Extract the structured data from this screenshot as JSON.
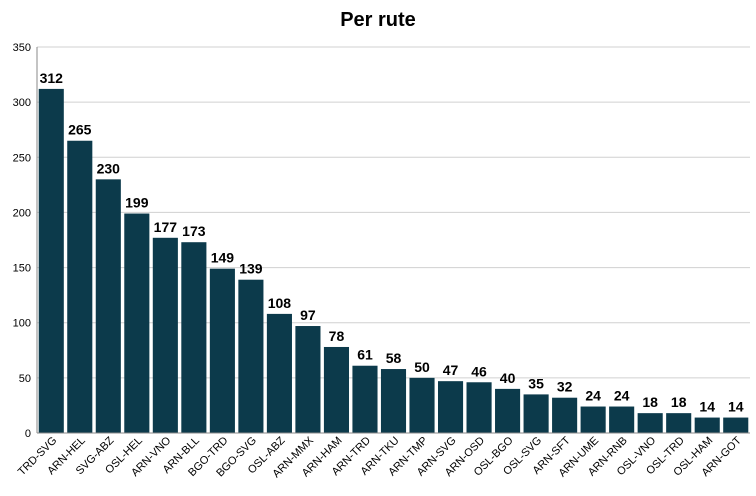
{
  "chart_data": {
    "type": "bar",
    "title": "Per rute",
    "categories": [
      "TRD-SVG",
      "ARN-HEL",
      "SVG-ABZ",
      "OSL-HEL",
      "ARN-VNO",
      "ARN-BLL",
      "BGO-TRD",
      "BGO-SVG",
      "OSL-ABZ",
      "ARN-MMX",
      "ARN-HAM",
      "ARN-TRD",
      "ARN-TKU",
      "ARN-TMP",
      "ARN-SVG",
      "ARN-OSD",
      "OSL-BGO",
      "OSL-SVG",
      "ARN-SFT",
      "ARN-UME",
      "ARN-RNB",
      "OSL-VNO",
      "OSL-TRD",
      "OSL-HAM",
      "ARN-GOT"
    ],
    "values": [
      312,
      265,
      230,
      199,
      177,
      173,
      149,
      139,
      108,
      97,
      78,
      61,
      58,
      50,
      47,
      46,
      40,
      35,
      32,
      24,
      24,
      18,
      18,
      14,
      14
    ],
    "color": "#0c3a4b",
    "ylim": [
      0,
      350
    ],
    "yticks": [
      0,
      50,
      100,
      150,
      200,
      250,
      300,
      350
    ],
    "grid": true
  }
}
